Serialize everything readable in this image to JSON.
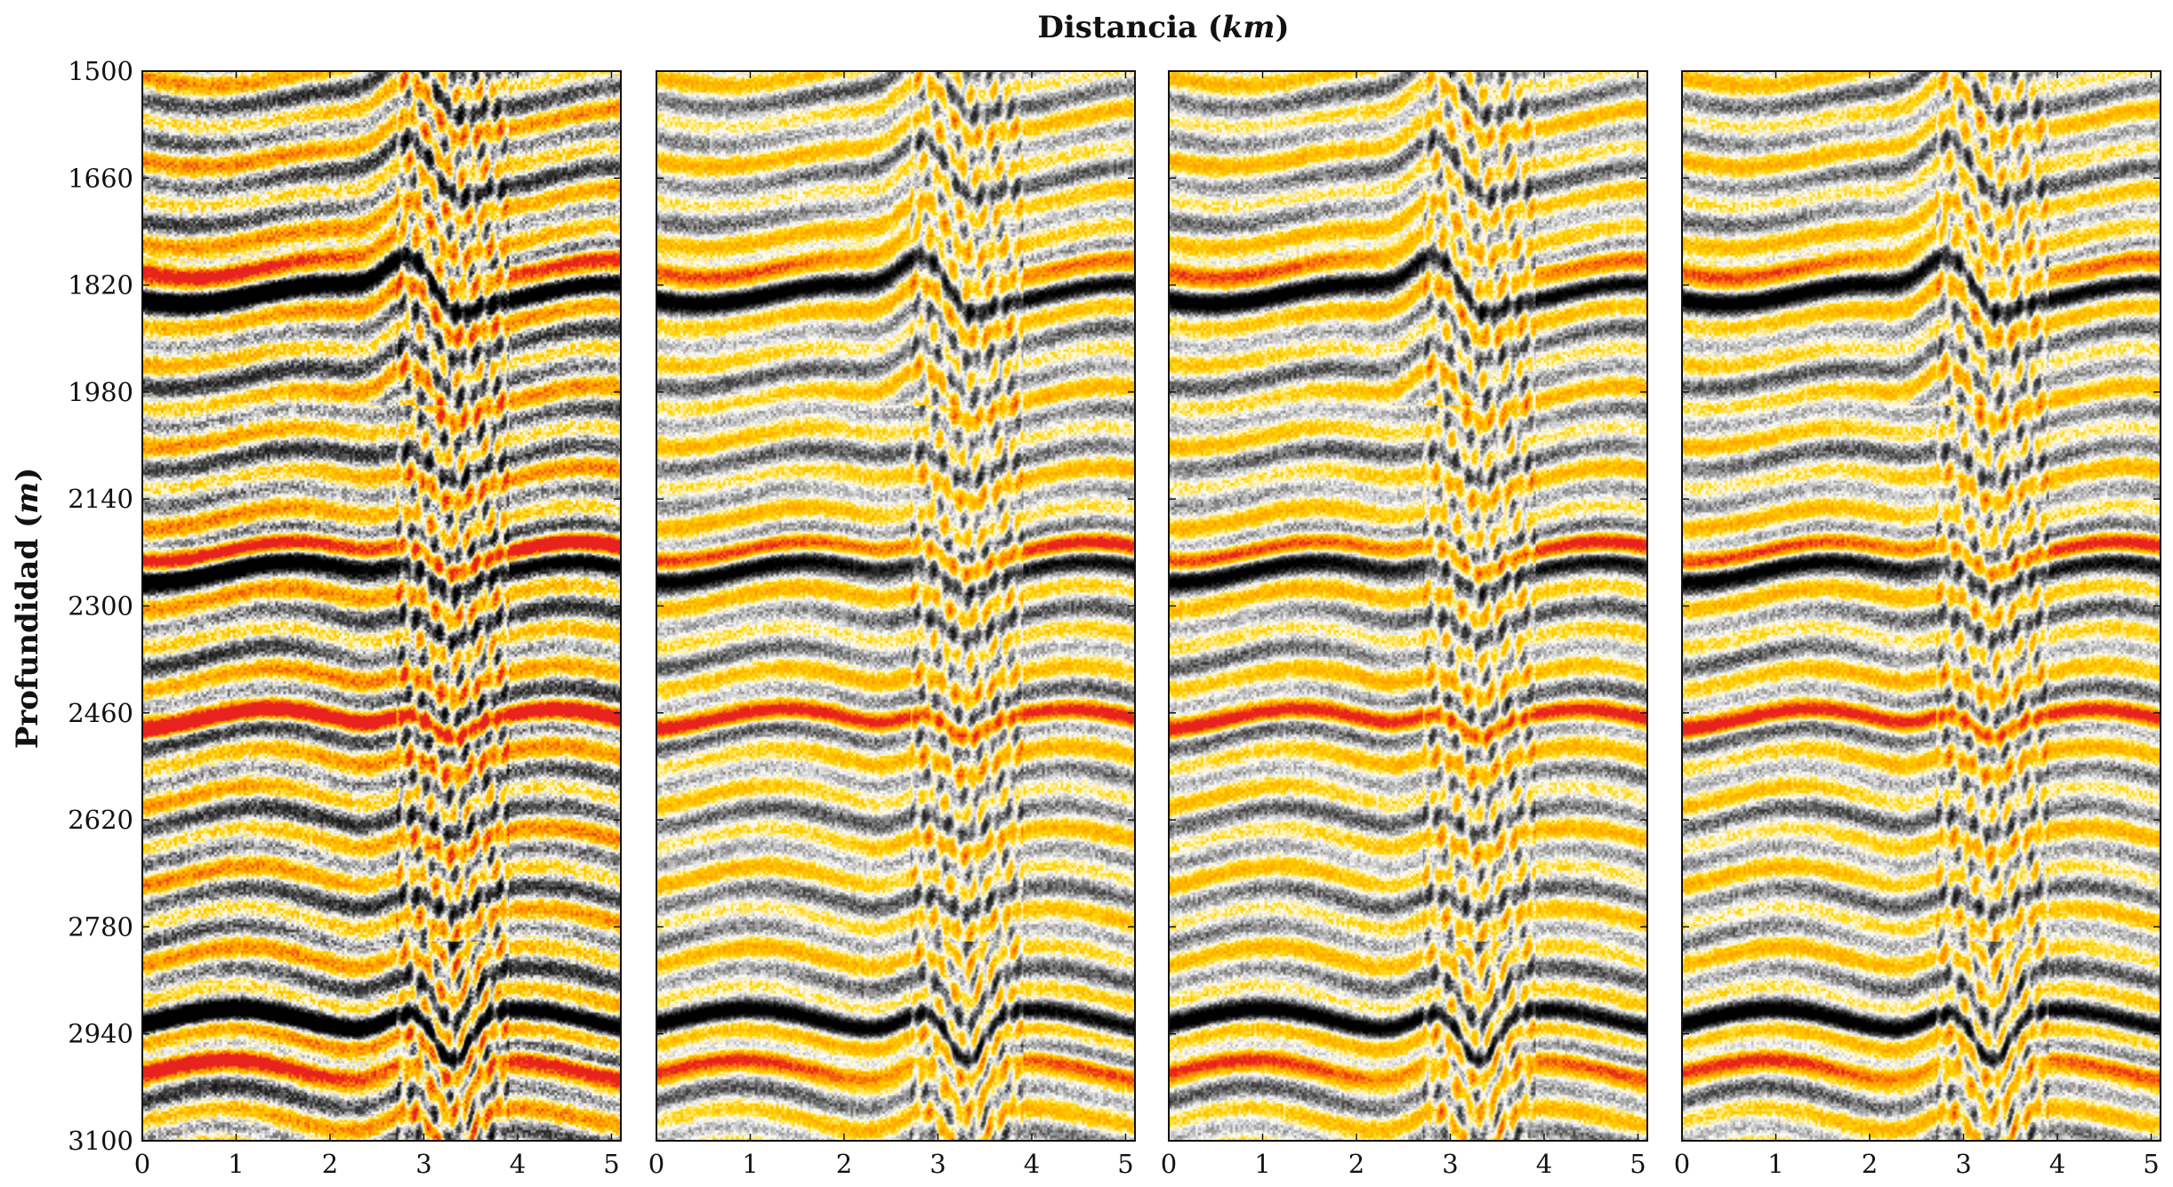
{
  "chart_data": {
    "type": "heatmap",
    "xlabel": "Distancia",
    "xlabel_unit": "km",
    "ylabel": "Profundidad",
    "ylabel_unit": "m",
    "panels": 4,
    "xlim": [
      0,
      5.1
    ],
    "ylim": [
      1500,
      3100
    ],
    "x_ticks": [
      "0",
      "1",
      "2",
      "3",
      "4",
      "5"
    ],
    "y_ticks": [
      "1500",
      "1660",
      "1820",
      "1980",
      "2140",
      "2300",
      "2460",
      "2620",
      "2780",
      "2940",
      "3100"
    ],
    "colormap": [
      "#000000",
      "#ffffff",
      "#ffd400",
      "#ff9900",
      "#e8221c"
    ],
    "major_reflectors_depth": [
      1790,
      1830,
      2215,
      2245,
      2470,
      2920,
      2990
    ],
    "fault_zone_x": [
      2.7,
      3.9
    ]
  }
}
